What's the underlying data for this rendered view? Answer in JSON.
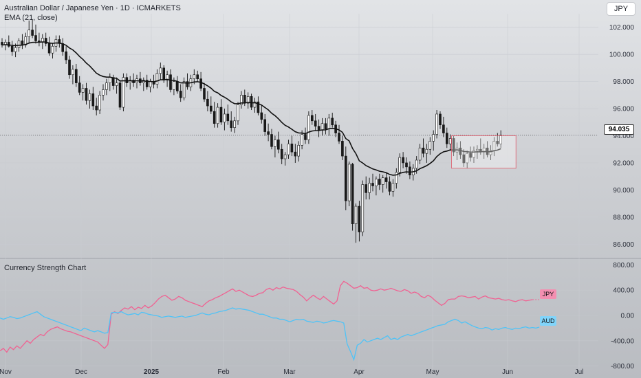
{
  "header": {
    "title": "Australian Dollar / Japanese Yen · 1D · ICMARKETS",
    "indicator": "EMA (21, close)"
  },
  "currency_button": "JPY",
  "current_price_label": "94.035",
  "lower_pane_title": "Currency Strength Chart",
  "tags": {
    "jpy": "JPY",
    "aud": "AUD"
  },
  "colors": {
    "jpy_line": "#f06292",
    "aud_line": "#4fc3f7",
    "ema": "#111111",
    "candle_up": "#ffffff",
    "candle_down": "#1a1a1a",
    "box_border": "#e05b6b"
  },
  "chart_data": [
    {
      "type": "candlestick",
      "title": "Australian Dollar / Japanese Yen · 1D · ICMARKETS",
      "y_ticks": [
        "102.000",
        "100.000",
        "98.000",
        "96.000",
        "94.000",
        "92.000",
        "90.000",
        "88.000",
        "86.000"
      ],
      "ylim": [
        85.0,
        103.0
      ],
      "x_ticks": [
        "Nov",
        "Dec",
        "2025",
        "Feb",
        "Mar",
        "Apr",
        "May",
        "Jun",
        "Jul"
      ],
      "last_price": 94.035,
      "ema_label": "EMA (21, close)",
      "candles": [
        [
          100.9,
          101.2,
          100.5,
          100.7
        ],
        [
          100.7,
          101.1,
          100.3,
          100.9
        ],
        [
          100.9,
          101.4,
          100.5,
          100.6
        ],
        [
          100.6,
          101.0,
          99.9,
          100.2
        ],
        [
          100.2,
          100.8,
          99.8,
          100.5
        ],
        [
          100.5,
          101.2,
          100.2,
          101.0
        ],
        [
          101.0,
          101.5,
          100.4,
          100.7
        ],
        [
          100.7,
          101.6,
          100.5,
          101.3
        ],
        [
          101.3,
          102.5,
          100.8,
          101.8
        ],
        [
          101.8,
          102.6,
          101.2,
          101.4
        ],
        [
          101.4,
          102.2,
          100.8,
          101.0
        ],
        [
          101.0,
          101.6,
          100.6,
          100.9
        ],
        [
          100.9,
          101.5,
          100.4,
          101.2
        ],
        [
          101.2,
          101.6,
          100.6,
          100.8
        ],
        [
          100.8,
          101.3,
          99.9,
          100.1
        ],
        [
          100.1,
          100.8,
          99.7,
          100.6
        ],
        [
          100.6,
          101.4,
          100.2,
          101.1
        ],
        [
          101.1,
          101.4,
          100.5,
          100.8
        ],
        [
          100.8,
          101.2,
          99.9,
          100.2
        ],
        [
          100.2,
          100.6,
          99.3,
          99.6
        ],
        [
          99.6,
          99.9,
          98.2,
          98.5
        ],
        [
          98.5,
          99.2,
          97.8,
          98.9
        ],
        [
          98.9,
          99.3,
          97.6,
          97.9
        ],
        [
          97.9,
          98.4,
          97.0,
          97.2
        ],
        [
          97.2,
          97.8,
          96.6,
          97.5
        ],
        [
          97.5,
          97.9,
          96.3,
          96.6
        ],
        [
          96.6,
          97.4,
          96.0,
          97.1
        ],
        [
          97.1,
          97.6,
          95.9,
          96.2
        ],
        [
          96.2,
          96.8,
          95.5,
          95.9
        ],
        [
          95.9,
          97.3,
          95.6,
          97.0
        ],
        [
          97.0,
          97.8,
          96.6,
          97.4
        ],
        [
          97.4,
          98.2,
          97.0,
          97.9
        ],
        [
          97.9,
          98.6,
          97.3,
          98.3
        ],
        [
          98.3,
          98.5,
          97.4,
          97.7
        ],
        [
          97.7,
          98.3,
          97.1,
          97.9
        ],
        [
          97.9,
          98.1,
          95.9,
          96.1
        ],
        [
          96.1,
          98.6,
          95.8,
          98.3
        ],
        [
          98.3,
          98.6,
          97.6,
          97.9
        ],
        [
          97.9,
          98.4,
          97.4,
          98.1
        ],
        [
          98.1,
          98.6,
          97.6,
          97.9
        ],
        [
          97.9,
          98.5,
          97.5,
          98.2
        ],
        [
          98.2,
          98.7,
          97.7,
          97.9
        ],
        [
          97.9,
          98.3,
          97.3,
          98.1
        ],
        [
          98.1,
          98.5,
          97.4,
          97.6
        ],
        [
          97.6,
          98.2,
          97.2,
          98.0
        ],
        [
          98.0,
          98.5,
          97.5,
          97.8
        ],
        [
          97.8,
          98.9,
          97.5,
          98.6
        ],
        [
          98.6,
          99.4,
          98.1,
          99.0
        ],
        [
          99.0,
          99.2,
          97.9,
          98.1
        ],
        [
          98.1,
          98.8,
          97.6,
          98.5
        ],
        [
          98.5,
          98.9,
          97.2,
          97.4
        ],
        [
          97.4,
          98.3,
          97.0,
          98.0
        ],
        [
          98.0,
          98.4,
          97.1,
          97.3
        ],
        [
          97.3,
          97.8,
          96.5,
          96.8
        ],
        [
          96.8,
          98.3,
          96.6,
          98.0
        ],
        [
          98.0,
          98.6,
          97.4,
          97.6
        ],
        [
          97.6,
          98.5,
          97.3,
          98.2
        ],
        [
          98.2,
          98.9,
          97.8,
          98.5
        ],
        [
          98.5,
          98.8,
          98.0,
          98.2
        ],
        [
          98.2,
          98.7,
          97.3,
          97.5
        ],
        [
          97.5,
          97.9,
          96.5,
          96.7
        ],
        [
          96.7,
          97.3,
          95.8,
          96.2
        ],
        [
          96.2,
          96.9,
          95.6,
          95.8
        ],
        [
          95.8,
          96.5,
          94.6,
          94.9
        ],
        [
          94.9,
          96.4,
          94.6,
          96.1
        ],
        [
          96.1,
          96.7,
          94.8,
          95.0
        ],
        [
          95.0,
          96.0,
          94.4,
          95.6
        ],
        [
          95.6,
          96.3,
          94.8,
          95.1
        ],
        [
          95.1,
          95.8,
          94.3,
          94.6
        ],
        [
          94.6,
          95.4,
          94.2,
          95.1
        ],
        [
          95.1,
          96.5,
          94.8,
          96.3
        ],
        [
          96.3,
          97.3,
          96.0,
          97.0
        ],
        [
          97.0,
          97.4,
          96.2,
          96.4
        ],
        [
          96.4,
          97.2,
          96.0,
          96.9
        ],
        [
          96.9,
          97.1,
          95.9,
          96.1
        ],
        [
          96.1,
          96.8,
          95.7,
          96.5
        ],
        [
          96.5,
          96.9,
          95.5,
          95.7
        ],
        [
          95.7,
          96.3,
          94.9,
          95.2
        ],
        [
          95.2,
          95.6,
          94.0,
          94.3
        ],
        [
          94.3,
          94.9,
          93.6,
          94.1
        ],
        [
          94.1,
          94.5,
          93.0,
          93.2
        ],
        [
          93.2,
          94.0,
          92.4,
          93.7
        ],
        [
          93.7,
          94.3,
          92.7,
          93.0
        ],
        [
          93.0,
          93.4,
          91.9,
          92.3
        ],
        [
          92.3,
          92.8,
          91.8,
          92.6
        ],
        [
          92.6,
          93.7,
          92.3,
          93.4
        ],
        [
          93.4,
          94.0,
          92.5,
          92.8
        ],
        [
          92.8,
          93.4,
          92.0,
          92.5
        ],
        [
          92.5,
          93.6,
          92.1,
          93.3
        ],
        [
          93.3,
          94.4,
          93.0,
          94.1
        ],
        [
          94.1,
          94.6,
          93.4,
          93.7
        ],
        [
          93.7,
          95.8,
          93.4,
          95.5
        ],
        [
          95.5,
          95.9,
          94.8,
          95.1
        ],
        [
          95.1,
          95.6,
          94.4,
          94.7
        ],
        [
          94.7,
          95.2,
          93.9,
          94.4
        ],
        [
          94.4,
          95.3,
          94.0,
          94.9
        ],
        [
          94.9,
          95.3,
          94.1,
          94.5
        ],
        [
          94.5,
          95.6,
          94.0,
          95.3
        ],
        [
          95.3,
          95.7,
          94.6,
          94.8
        ],
        [
          94.8,
          95.1,
          93.9,
          94.2
        ],
        [
          94.2,
          94.8,
          93.4,
          93.6
        ],
        [
          93.6,
          94.0,
          92.2,
          92.5
        ],
        [
          92.5,
          93.2,
          88.5,
          89.2
        ],
        [
          89.2,
          92.1,
          88.8,
          91.9
        ],
        [
          91.9,
          92.0,
          87.0,
          87.5
        ],
        [
          87.5,
          89.0,
          86.1,
          88.8
        ],
        [
          88.8,
          89.2,
          86.2,
          86.9
        ],
        [
          86.9,
          90.7,
          86.6,
          90.4
        ],
        [
          90.4,
          91.0,
          89.3,
          89.8
        ],
        [
          89.8,
          90.9,
          89.3,
          90.5
        ],
        [
          90.5,
          91.2,
          89.9,
          90.3
        ],
        [
          90.3,
          91.0,
          89.6,
          90.8
        ],
        [
          90.8,
          91.2,
          90.0,
          90.4
        ],
        [
          90.4,
          91.1,
          89.8,
          90.9
        ],
        [
          90.9,
          91.3,
          90.1,
          90.6
        ],
        [
          90.6,
          91.0,
          89.6,
          89.9
        ],
        [
          89.9,
          90.8,
          89.5,
          90.5
        ],
        [
          90.5,
          91.6,
          90.1,
          91.3
        ],
        [
          91.3,
          92.7,
          91.0,
          92.4
        ],
        [
          92.4,
          92.8,
          91.6,
          92.0
        ],
        [
          92.0,
          92.4,
          91.2,
          91.7
        ],
        [
          91.7,
          92.1,
          90.8,
          91.1
        ],
        [
          91.1,
          91.9,
          90.7,
          91.6
        ],
        [
          91.6,
          92.5,
          91.2,
          92.2
        ],
        [
          92.2,
          93.4,
          91.9,
          93.1
        ],
        [
          93.1,
          93.8,
          92.4,
          92.7
        ],
        [
          92.7,
          93.4,
          92.0,
          93.0
        ],
        [
          93.0,
          93.9,
          92.6,
          93.6
        ],
        [
          93.6,
          94.4,
          92.9,
          94.1
        ],
        [
          94.1,
          95.9,
          93.8,
          95.6
        ],
        [
          95.6,
          95.8,
          94.5,
          94.8
        ],
        [
          94.8,
          95.4,
          93.9,
          94.2
        ],
        [
          94.2,
          94.6,
          93.1,
          93.4
        ],
        [
          93.4,
          94.1,
          92.9,
          93.8
        ],
        [
          93.8,
          94.0,
          92.5,
          92.8
        ],
        [
          92.8,
          93.5,
          92.2,
          93.1
        ],
        [
          93.1,
          93.6,
          92.3,
          92.6
        ],
        [
          92.6,
          93.0,
          91.7,
          92.0
        ],
        [
          92.0,
          92.9,
          91.6,
          92.7
        ],
        [
          92.7,
          93.2,
          92.1,
          92.4
        ],
        [
          92.4,
          93.2,
          92.0,
          92.9
        ],
        [
          92.9,
          93.3,
          92.3,
          93.0
        ],
        [
          93.0,
          93.8,
          92.6,
          92.8
        ],
        [
          92.8,
          93.4,
          92.3,
          93.1
        ],
        [
          93.1,
          93.6,
          92.4,
          92.6
        ],
        [
          92.6,
          93.3,
          92.2,
          92.9
        ],
        [
          92.9,
          93.9,
          92.5,
          93.6
        ],
        [
          93.6,
          94.2,
          93.2,
          93.4
        ],
        [
          93.4,
          94.4,
          93.1,
          94.035
        ]
      ]
    },
    {
      "type": "line",
      "title": "Currency Strength Chart",
      "y_ticks": [
        "800.00",
        "400.00",
        "0.00",
        "-400.00",
        "-800.00"
      ],
      "ylim": [
        -880,
        880
      ],
      "series": [
        {
          "name": "JPY",
          "color": "#f06292",
          "values": [
            -560,
            -520,
            -580,
            -500,
            -540,
            -480,
            -520,
            -460,
            -400,
            -440,
            -380,
            -340,
            -300,
            -320,
            -260,
            -220,
            -200,
            -180,
            -210,
            -230,
            -250,
            -260,
            -280,
            -300,
            -320,
            -340,
            -360,
            -380,
            -400,
            -420,
            -470,
            -520,
            -460,
            20,
            60,
            30,
            80,
            120,
            100,
            140,
            90,
            130,
            110,
            160,
            120,
            150,
            200,
            260,
            300,
            320,
            280,
            240,
            260,
            300,
            280,
            240,
            220,
            200,
            180,
            160,
            140,
            190,
            230,
            250,
            280,
            300,
            330,
            360,
            390,
            420,
            380,
            400,
            370,
            340,
            310,
            300,
            320,
            350,
            360,
            410,
            430,
            400,
            440,
            420,
            450,
            430,
            420,
            410,
            380,
            330,
            290,
            230,
            280,
            320,
            280,
            250,
            300,
            260,
            220,
            180,
            230,
            470,
            540,
            510,
            470,
            430,
            440,
            470,
            430,
            440,
            400,
            390,
            400,
            420,
            400,
            410,
            430,
            410,
            390,
            380,
            410,
            390,
            350,
            370,
            350,
            300,
            280,
            320,
            290,
            240,
            200,
            160,
            190,
            250,
            260,
            260,
            300,
            310,
            300,
            280,
            290,
            300,
            260,
            290,
            310,
            280,
            270,
            260,
            270,
            250,
            240,
            250,
            230,
            220,
            240,
            250,
            230,
            240,
            250
          ]
        },
        {
          "name": "AUD",
          "color": "#4fc3f7",
          "values": [
            -40,
            -60,
            -40,
            -20,
            -30,
            -50,
            -40,
            -20,
            0,
            20,
            40,
            60,
            20,
            -20,
            -40,
            -60,
            -80,
            -100,
            -120,
            -140,
            -160,
            -180,
            -200,
            -220,
            -240,
            -200,
            -220,
            -240,
            -260,
            -240,
            -260,
            -280,
            -270,
            40,
            50,
            40,
            60,
            30,
            10,
            20,
            30,
            10,
            50,
            40,
            20,
            10,
            0,
            -10,
            -30,
            -20,
            -10,
            -20,
            -30,
            -20,
            -10,
            -30,
            -20,
            -10,
            0,
            20,
            40,
            20,
            10,
            30,
            40,
            60,
            70,
            80,
            100,
            120,
            100,
            110,
            100,
            90,
            80,
            60,
            40,
            20,
            20,
            0,
            -20,
            -40,
            -40,
            -60,
            -60,
            -80,
            -100,
            -80,
            -60,
            -70,
            -60,
            -90,
            -100,
            -110,
            -90,
            -100,
            -120,
            -110,
            -90,
            -80,
            -90,
            -100,
            -120,
            -450,
            -570,
            -700,
            -470,
            -440,
            -380,
            -420,
            -400,
            -380,
            -360,
            -380,
            -350,
            -320,
            -380,
            -360,
            -380,
            -340,
            -320,
            -300,
            -320,
            -300,
            -280,
            -260,
            -240,
            -220,
            -200,
            -180,
            -160,
            -150,
            -140,
            -100,
            -80,
            -60,
            -80,
            -120,
            -100,
            -130,
            -160,
            -180,
            -200,
            -210,
            -190,
            -200,
            -230,
            -210,
            -220,
            -200,
            -190,
            -210,
            -220,
            -200,
            -210,
            -190,
            -180,
            -200,
            -190,
            -200,
            -185
          ]
        }
      ]
    }
  ]
}
